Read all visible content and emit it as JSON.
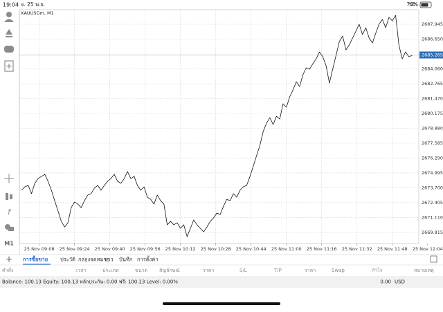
{
  "status": {
    "time": "19:04",
    "date": "จ. 25 พ.ย.",
    "battery": "70%"
  },
  "chart_data": {
    "type": "line",
    "title": "XAUUSDm, M1",
    "timeframe": "M1",
    "x": [
      540,
      541.5,
      543,
      544.5,
      546,
      547.5,
      549,
      550.5,
      552,
      553.5,
      555,
      556.5,
      558,
      559.5,
      561,
      562.5,
      564,
      565.5,
      567,
      568.5,
      570,
      571.5,
      573,
      574.5,
      576,
      577.5,
      579,
      580.5,
      582,
      583.5,
      585,
      586.5,
      588,
      589.5,
      591,
      592.5,
      594,
      595.5,
      597,
      598.5,
      600,
      601.5,
      603,
      604.5,
      606,
      607.5,
      609,
      610.5,
      612,
      613.5,
      615,
      616.5,
      618,
      619.5,
      621,
      622.5,
      624,
      625.5,
      627,
      628.5,
      630,
      631.5,
      633,
      634.5,
      636,
      637.5,
      639,
      640.5,
      642,
      643.5,
      645,
      646.5,
      648,
      649.5,
      651,
      652.5,
      654,
      655.5,
      657,
      658.5,
      660,
      661.5,
      663,
      664.5,
      666,
      667.5,
      669,
      670.5,
      672,
      673.5,
      675,
      676.5,
      678,
      679.5,
      681,
      682.5,
      684,
      685.5,
      687,
      688.5,
      690,
      691.5,
      693,
      694.5,
      696,
      697.5,
      699,
      700.5,
      702,
      703.5,
      705,
      706.5,
      708,
      709.5,
      711,
      712.5,
      714,
      715.5,
      717
    ],
    "series": [
      {
        "color": "#111111",
        "values": [
          2673.49,
          2673.79,
          2673.91,
          2673.19,
          2674.09,
          2674.51,
          2674.69,
          2674.87,
          2674.27,
          2673.49,
          2672.58,
          2671.68,
          2670.78,
          2670.29,
          2670.66,
          2671.98,
          2672.46,
          2672.28,
          2671.98,
          2672.58,
          2673.07,
          2673.19,
          2673.67,
          2673.91,
          2673.49,
          2673.91,
          2674.27,
          2674.51,
          2674.87,
          2674.27,
          2674.09,
          2674.51,
          2675.11,
          2674.51,
          2674.69,
          2673.91,
          2673.49,
          2673.79,
          2672.88,
          2672.7,
          2672.28,
          2673.07,
          2672.58,
          2672.28,
          2670.48,
          2670.78,
          2670.48,
          2670.66,
          2670.17,
          2670.48,
          2669.45,
          2670.17,
          2670.9,
          2670.48,
          2670.17,
          2669.87,
          2670.29,
          2670.78,
          2671.08,
          2671.5,
          2671.38,
          2672.1,
          2672.7,
          2672.58,
          2673.19,
          2672.88,
          2673.49,
          2673.79,
          2673.91,
          2674.69,
          2675.59,
          2676.5,
          2677.4,
          2678.61,
          2679.33,
          2679.81,
          2679.21,
          2679.93,
          2679.69,
          2681.02,
          2680.71,
          2681.62,
          2682.22,
          2682.94,
          2682.52,
          2683.55,
          2684.15,
          2684.03,
          2684.51,
          2684.93,
          2685.53,
          2685.11,
          2684.33,
          2682.82,
          2684.03,
          2685.23,
          2686.44,
          2686.92,
          2685.71,
          2686.14,
          2686.74,
          2687.34,
          2687.94,
          2687.04,
          2687.64,
          2686.74,
          2686.32,
          2687.16,
          2687.94,
          2688.36,
          2687.64,
          2688.54,
          2688.24,
          2688.72,
          2686.14,
          2684.93,
          2685.53,
          2685.11,
          2685.23
        ]
      }
    ],
    "current_price": 2685.265,
    "current_price_color": "#2f6fb3",
    "xlim": [
      539,
      720
    ],
    "xticks": [
      {
        "value": 548,
        "label": "25 Nov 09:08"
      },
      {
        "value": 564,
        "label": "25 Nov 09:24"
      },
      {
        "value": 580,
        "label": "25 Nov 09:40"
      },
      {
        "value": 596,
        "label": "25 Nov 09:56"
      },
      {
        "value": 612,
        "label": "25 Nov 10:12"
      },
      {
        "value": 628,
        "label": "25 Nov 10:28"
      },
      {
        "value": 644,
        "label": "25 Nov 10:44"
      },
      {
        "value": 660,
        "label": "25 Nov 11:00"
      },
      {
        "value": 676,
        "label": "25 Nov 11:16"
      },
      {
        "value": 692,
        "label": "25 Nov 11:32"
      },
      {
        "value": 708,
        "label": "25 Nov 11:48"
      },
      {
        "value": 724,
        "label": "25 Nov 12:04"
      }
    ],
    "ylim": [
      2668.85,
      2689.21
    ],
    "yticks": [
      2687.945,
      {
        "value": 2686.65,
        "label": "2686.650"
      },
      {
        "value": 2684.06,
        "label": "2684.060"
      },
      2682.765,
      {
        "value": 2681.47,
        "label": "2681.470"
      },
      2680.175,
      {
        "value": 2678.88,
        "label": "2678.880"
      },
      2677.585,
      {
        "value": 2676.29,
        "label": "2676.290"
      },
      2674.995,
      {
        "value": 2673.7,
        "label": "2673.700"
      },
      2672.405,
      {
        "value": 2671.11,
        "label": "2671.110"
      },
      2669.815
    ],
    "grid": true
  },
  "tabs": [
    "การซื้อขาย",
    "ประวัติ",
    "กล่องจดหมาย",
    "ข่าว",
    "บันทึก",
    "การตั้งค่า"
  ],
  "columns": [
    "คำสั่ง",
    "เวลา",
    "ประเภท",
    "ขนาด",
    "สัญลักษณ์",
    "ราคา",
    "S/L",
    "T/P",
    "ราคา",
    "Swap",
    "กำไร",
    "หมายเหตุ"
  ],
  "footer": {
    "summary": "Balance: 100.13 Equity: 100.13 หลักประกัน: 0.00 ฟรี: 100.13 Level: 0.00%",
    "profit": "0.00",
    "currency": "USD"
  }
}
